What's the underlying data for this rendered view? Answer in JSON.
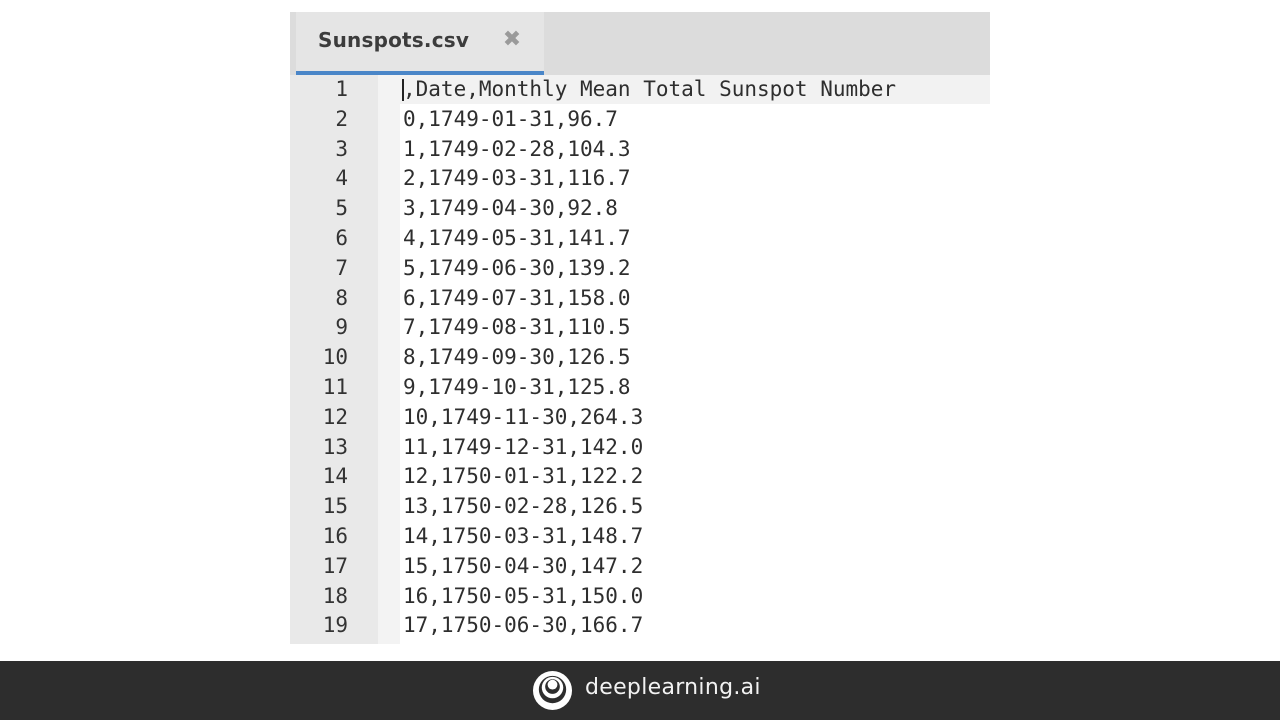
{
  "editor": {
    "tab": {
      "title": "Sunspots.csv",
      "close_icon": "close-icon"
    },
    "line_numbers": [
      "1",
      "2",
      "3",
      "4",
      "5",
      "6",
      "7",
      "8",
      "9",
      "10",
      "11",
      "12",
      "13",
      "14",
      "15",
      "16",
      "17",
      "18",
      "19"
    ],
    "lines": [
      ",Date,Monthly Mean Total Sunspot Number",
      "0,1749-01-31,96.7",
      "1,1749-02-28,104.3",
      "2,1749-03-31,116.7",
      "3,1749-04-30,92.8",
      "4,1749-05-31,141.7",
      "5,1749-06-30,139.2",
      "6,1749-07-31,158.0",
      "7,1749-08-31,110.5",
      "8,1749-09-30,126.5",
      "9,1749-10-31,125.8",
      "10,1749-11-30,264.3",
      "11,1749-12-31,142.0",
      "12,1750-01-31,122.2",
      "13,1750-02-28,126.5",
      "14,1750-03-31,148.7",
      "15,1750-04-30,147.2",
      "16,1750-05-31,150.0",
      "17,1750-06-30,166.7"
    ],
    "colors": {
      "tab_accent": "#4a86c8",
      "gutter": "#e9e9e9"
    }
  },
  "footer": {
    "brand": "deeplearning.ai",
    "logo_icon": "deeplearning-logo-icon",
    "colors": {
      "background": "#2d2d2d",
      "text": "#f2f2f2"
    }
  }
}
